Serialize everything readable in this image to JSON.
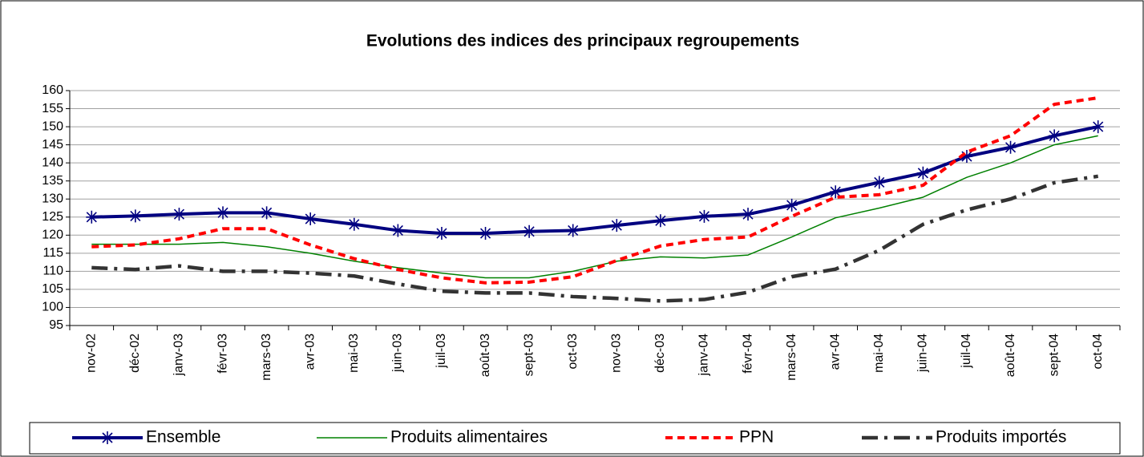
{
  "chart_data": {
    "type": "line",
    "title": "Evolutions des indices des principaux regroupements",
    "categories": [
      "nov-02",
      "déc-02",
      "janv-03",
      "févr-03",
      "mars-03",
      "avr-03",
      "mai-03",
      "juin-03",
      "juil-03",
      "août-03",
      "sept-03",
      "oct-03",
      "nov-03",
      "déc-03",
      "janv-04",
      "févr-04",
      "mars-04",
      "avr-04",
      "mai-04",
      "juin-04",
      "juil-04",
      "août-04",
      "sept-04",
      "oct-04"
    ],
    "series": [
      {
        "name": "Ensemble",
        "color": "#000080",
        "line_style": "solid",
        "marker": "asterisk",
        "values": [
          125,
          125.3,
          125.8,
          126.2,
          126.2,
          124.5,
          123,
          121.3,
          120.5,
          120.5,
          121,
          121.3,
          122.7,
          124,
          125.2,
          125.8,
          128.3,
          132,
          134.6,
          137.2,
          141.8,
          144.3,
          147.5,
          150
        ]
      },
      {
        "name": "Produits alimentaires",
        "color": "#008000",
        "line_style": "thin",
        "values": [
          117.5,
          117.5,
          117.5,
          118,
          116.8,
          115,
          112.8,
          111,
          109.5,
          108.2,
          108.2,
          110,
          112.8,
          114,
          113.7,
          114.5,
          119.5,
          124.8,
          127.5,
          130.5,
          136,
          140,
          145,
          147.5
        ]
      },
      {
        "name": "PPN",
        "color": "#ff0000",
        "line_style": "dashed",
        "values": [
          116.8,
          117.3,
          119,
          121.8,
          121.8,
          117.3,
          113.5,
          110.5,
          108.2,
          106.8,
          107,
          108.5,
          113,
          117,
          118.8,
          119.5,
          125.2,
          130.5,
          131.2,
          133.8,
          143,
          147.5,
          156.2,
          158
        ]
      },
      {
        "name": "Produits importés",
        "color": "#333333",
        "line_style": "dash-dot",
        "values": [
          111,
          110.5,
          111.5,
          110,
          110,
          109.5,
          108.7,
          106.5,
          104.5,
          104,
          104,
          103,
          102.5,
          101.8,
          102.2,
          104.2,
          108.5,
          110.6,
          115.8,
          123,
          127,
          130,
          134.5,
          136.3
        ]
      }
    ],
    "ylim": [
      95,
      160
    ],
    "yticks": [
      95,
      100,
      105,
      110,
      115,
      120,
      125,
      130,
      135,
      140,
      145,
      150,
      155,
      160
    ],
    "grid": true,
    "legend": "bottom"
  }
}
